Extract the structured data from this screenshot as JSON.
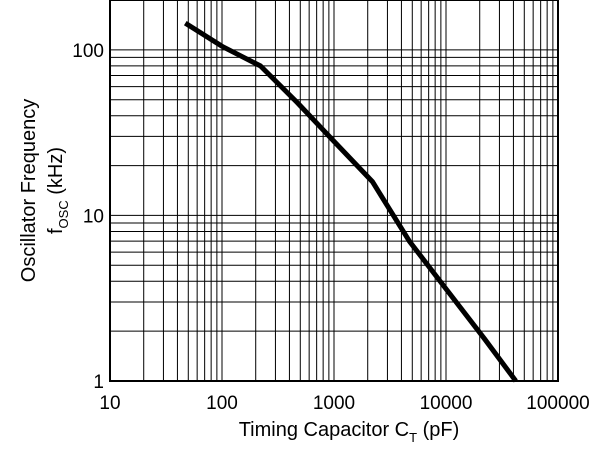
{
  "chart_data": {
    "type": "line",
    "xlabel": {
      "main": "Timing Capacitor C",
      "subscript": "T",
      "unit": " (pF)"
    },
    "ylabel": {
      "line1": "Oscillator Frequency",
      "symbol": "f",
      "subscript": "OSC",
      "unit": " (kHz)"
    },
    "x_scale": "log",
    "y_scale": "log",
    "xlim": [
      10,
      100000
    ],
    "ylim": [
      1,
      200
    ],
    "x_ticks": [
      "10",
      "100",
      "1000",
      "10000",
      "100000"
    ],
    "y_ticks": [
      "1",
      "10",
      "100"
    ],
    "grid": true,
    "series": [
      {
        "x": [
          47,
          100,
          220,
          470,
          1000,
          2200,
          4700,
          10000,
          22000,
          42000
        ],
        "y": [
          145,
          105,
          80,
          48,
          28,
          16,
          7,
          3.6,
          1.8,
          1.0
        ]
      }
    ]
  }
}
